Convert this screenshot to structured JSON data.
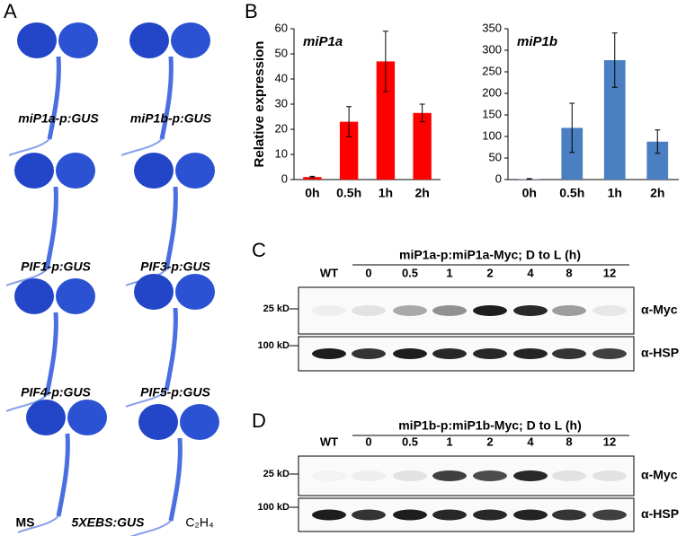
{
  "panel_letters": [
    "A",
    "B",
    "C",
    "D"
  ],
  "seedling_labels": [
    "miP1a-p:GUS",
    "miP1b-p:GUS",
    "PIF1-p:GUS",
    "PIF3-p:GUS",
    "PIF4-p:GUS",
    "PIF5-p:GUS",
    "MS",
    "5XEBS:GUS",
    "C₂H₄"
  ],
  "chart_data": [
    {
      "type": "bar",
      "title": "miP1a",
      "y_label": "Relative expression",
      "color": "#ff0000",
      "categories": [
        "0h",
        "0.5h",
        "1h",
        "2h"
      ],
      "values": [
        1,
        23,
        47,
        26.5
      ],
      "errors": [
        0.3,
        6,
        12,
        3.5
      ],
      "ylim": [
        0,
        60
      ],
      "yticks": [
        0,
        10,
        20,
        30,
        40,
        50,
        60
      ]
    },
    {
      "type": "bar",
      "title": "miP1b",
      "color": "#4a7fc1",
      "categories": [
        "0h",
        "0.5h",
        "1h",
        "2h"
      ],
      "values": [
        1,
        120,
        277,
        88
      ],
      "errors": [
        1,
        57,
        63,
        27
      ],
      "ylim": [
        0,
        350
      ],
      "yticks": [
        0,
        50,
        100,
        150,
        200,
        250,
        300,
        350
      ]
    }
  ],
  "blots": [
    {
      "title": "miP1a-p:miP1a-Myc;  D to L (h)",
      "lanes": [
        "WT",
        "0",
        "0.5",
        "1",
        "2",
        "4",
        "8",
        "12"
      ],
      "markers": [
        "25 kD",
        "100 kD"
      ],
      "antibodies": [
        "α-Myc",
        "α-HSP"
      ]
    },
    {
      "title": "miP1b-p:miP1b-Myc;  D to L (h)",
      "lanes": [
        "WT",
        "0",
        "0.5",
        "1",
        "2",
        "4",
        "8",
        "12"
      ],
      "markers": [
        "25 kD",
        "100 kD"
      ],
      "antibodies": [
        "α-Myc",
        "α-HSP"
      ]
    }
  ]
}
